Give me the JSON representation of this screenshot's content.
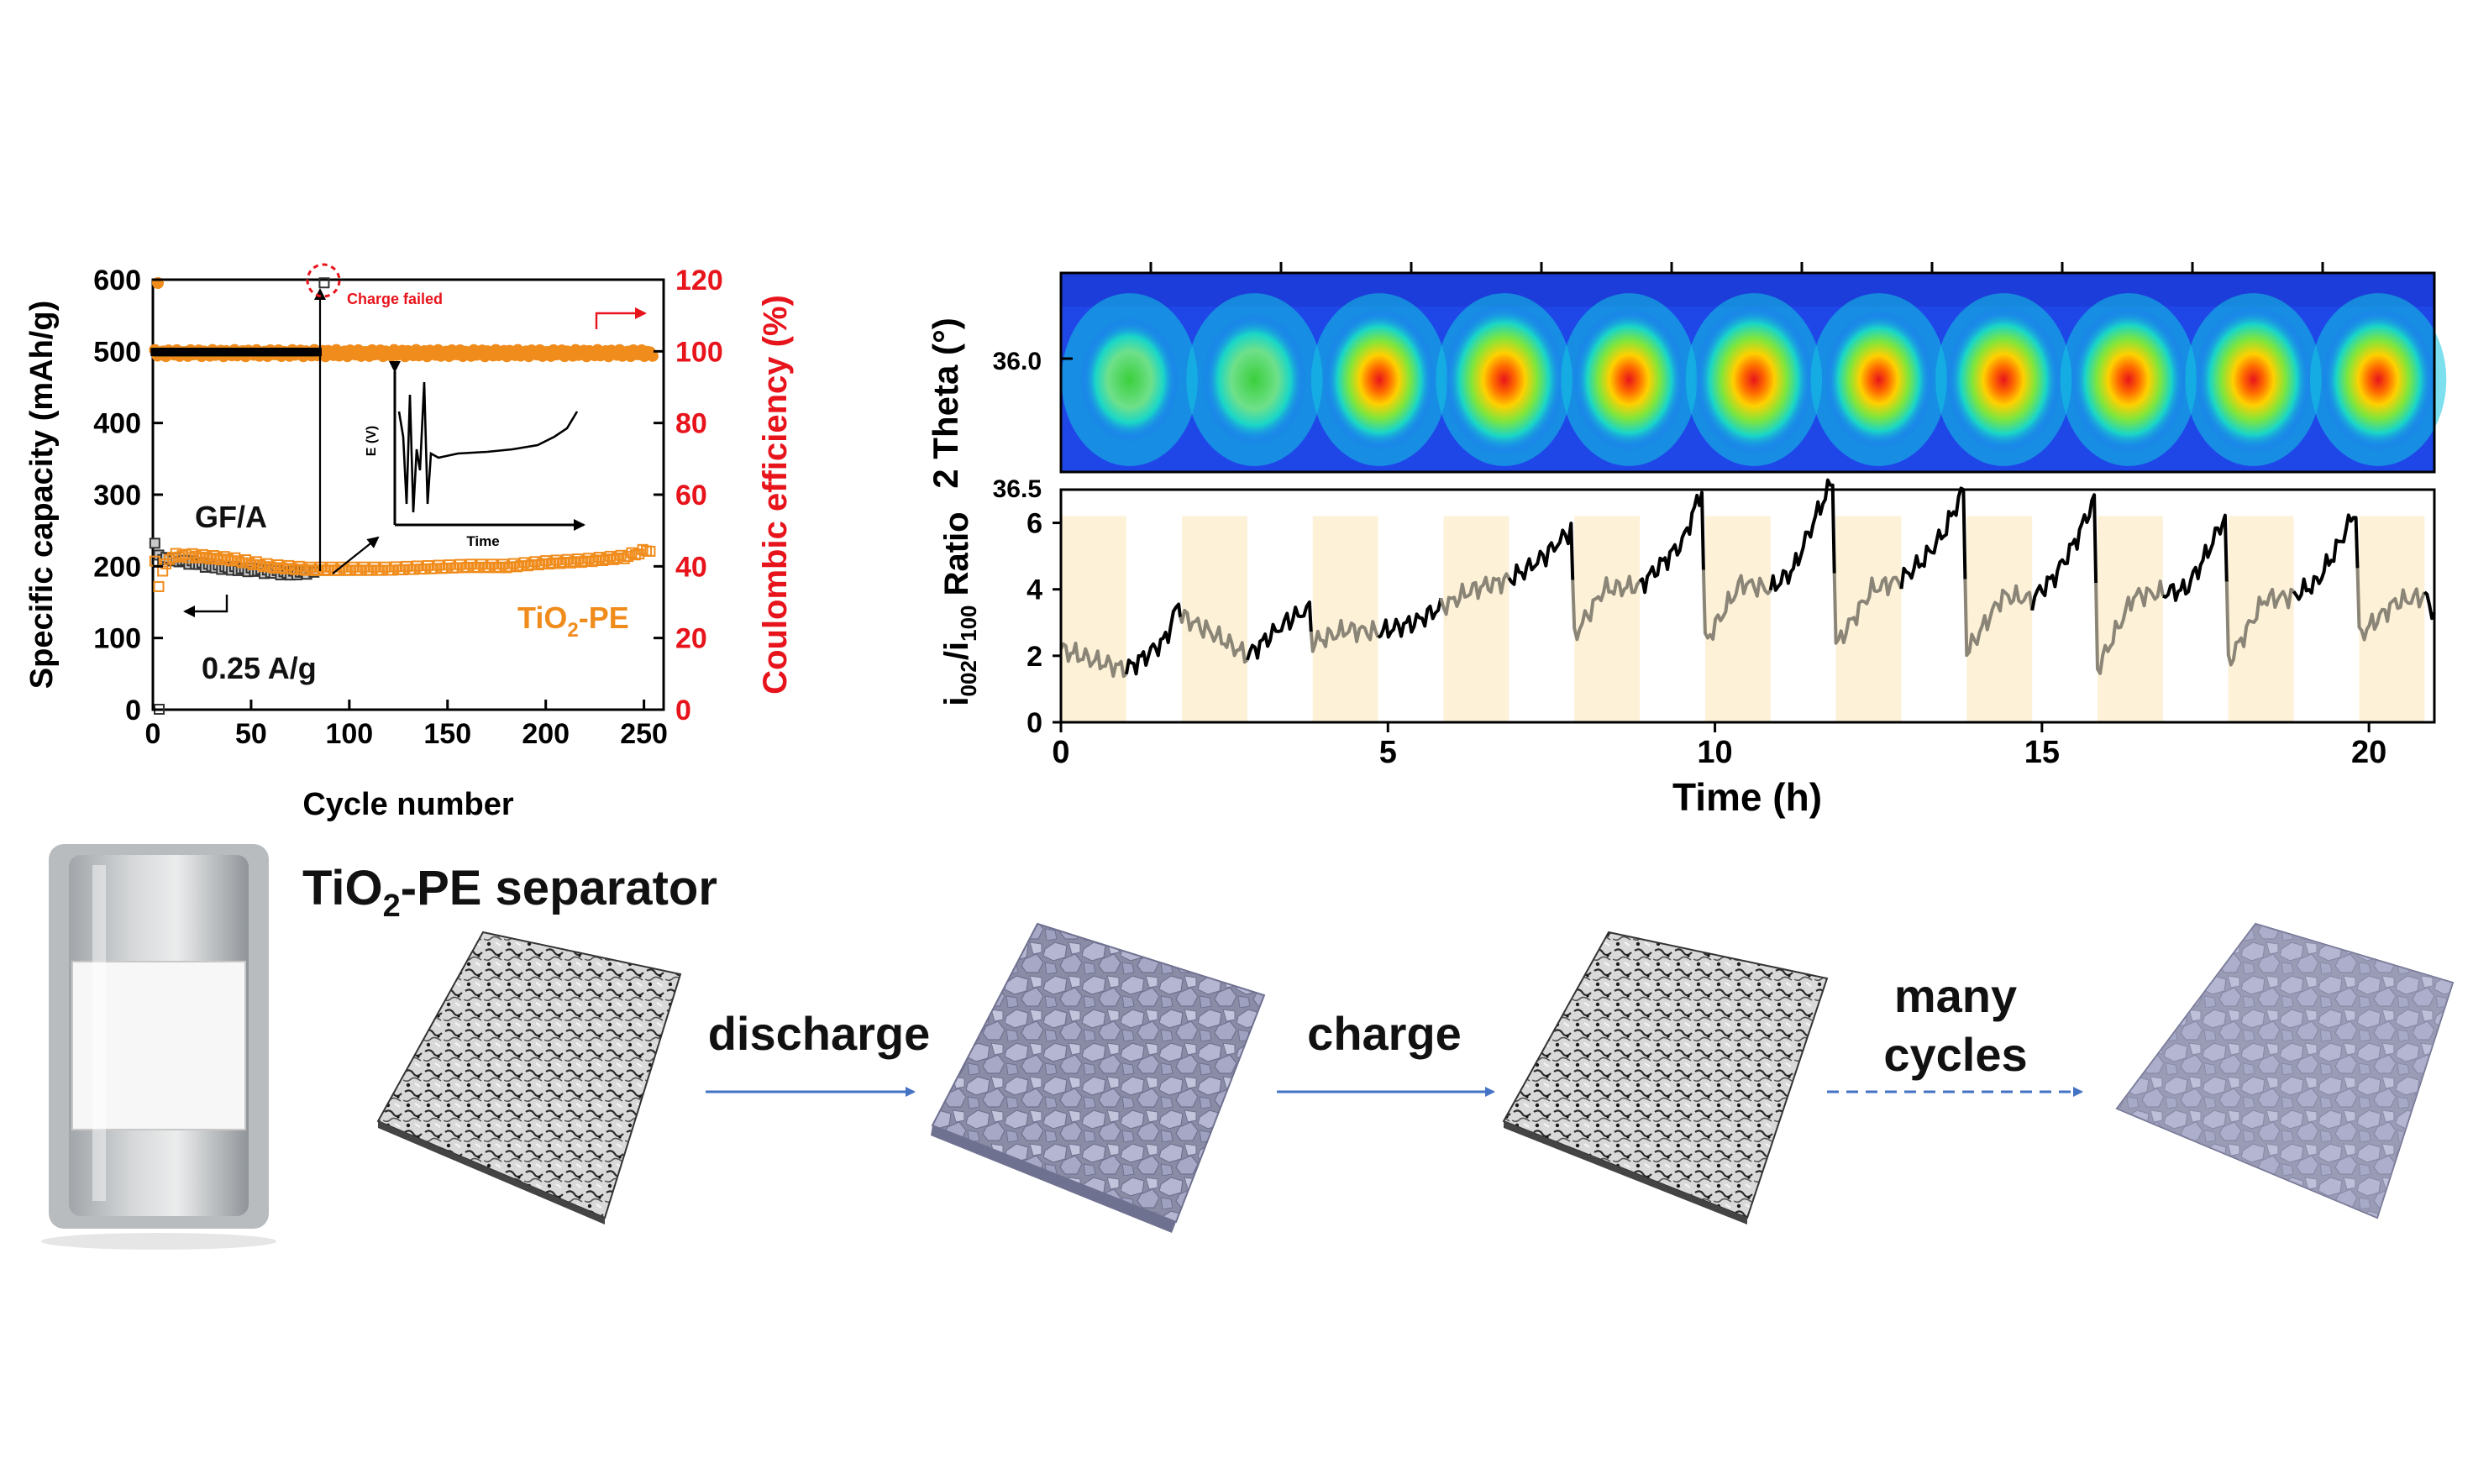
{
  "chart_data": [
    {
      "type": "scatter",
      "xlabel": "Cycle number",
      "ylabel": "Specific capacity (mAh/g)",
      "ylabel_right": "Coulombic efficiency (%)",
      "xlim": [
        0,
        260
      ],
      "ylim": [
        0,
        600
      ],
      "ylim_right": [
        0,
        120
      ],
      "xticks": [
        "0",
        "50",
        "100",
        "150",
        "200",
        "250"
      ],
      "yticks": [
        "0",
        "100",
        "200",
        "300",
        "400",
        "500",
        "600"
      ],
      "yticks_right": [
        "0",
        "20",
        "40",
        "60",
        "80",
        "100",
        "120"
      ],
      "labels": {
        "gf": "GF/A",
        "tio2_main": "TiO",
        "tio2_sub": "2",
        "tio2_tail": "-PE",
        "rate": "0.25 A/g",
        "charge_failed": "Charge failed"
      },
      "inset": {
        "ylabel": "E (V)",
        "xlabel": "Time"
      },
      "colors": {
        "gf": "#000000",
        "tio2": "#f08c1c",
        "right_axis": "#e8141c",
        "failed": "#e8141c"
      },
      "series": [
        {
          "key": "gf_ce",
          "marker": "filled-square",
          "x_start": 1,
          "x_end": 84,
          "value": 99.8
        },
        {
          "key": "tio2_ce",
          "marker": "filled-circle",
          "x_start": 1,
          "x_end": 255,
          "value": 99.5
        },
        {
          "key": "gf_cap",
          "marker": "open-square",
          "x": [
            1,
            3,
            5,
            10,
            20,
            30,
            40,
            50,
            60,
            70,
            80,
            84
          ],
          "y": [
            230,
            214,
            212,
            210,
            205,
            200,
            197,
            195,
            192,
            190,
            192,
            191
          ]
        },
        {
          "key": "tio2_cap",
          "marker": "open-square",
          "x": [
            1,
            3,
            5,
            10,
            20,
            40,
            60,
            80,
            100,
            120,
            140,
            160,
            180,
            200,
            220,
            240,
            255
          ],
          "y": [
            205,
            170,
            196,
            215,
            215,
            210,
            200,
            196,
            196,
            196,
            198,
            200,
            200,
            205,
            208,
            213,
            225
          ]
        }
      ],
      "outliers": [
        {
          "x": 0,
          "y_right": 120
        },
        {
          "x": 0,
          "y": 0
        },
        {
          "x": 84,
          "y": 595
        }
      ]
    },
    {
      "type": "heatmap",
      "ylabel": "2 Theta (°)",
      "yticks": [
        "36.0",
        "36.5"
      ],
      "blobs": [
        0.35,
        0.5,
        0.7,
        0.92,
        0.72,
        0.88,
        0.62,
        0.78,
        0.8,
        0.82,
        0.72
      ]
    },
    {
      "type": "line",
      "xlabel": "Time (h)",
      "ylabel_main": "i",
      "ylabel_sub1": "002",
      "ylabel_mid": "/i",
      "ylabel_sub2": "100",
      "ylabel_tail": " Ratio",
      "xlim": [
        0,
        21
      ],
      "ylim": [
        0,
        7
      ],
      "xticks": [
        "0",
        "5",
        "10",
        "15",
        "20"
      ],
      "yticks": [
        "0",
        "2",
        "4",
        "6"
      ],
      "shaded_intervals": [
        [
          0,
          1
        ],
        [
          1.85,
          2.85
        ],
        [
          3.85,
          4.85
        ],
        [
          5.85,
          6.85
        ],
        [
          7.85,
          8.85
        ],
        [
          9.85,
          10.85
        ],
        [
          11.85,
          12.85
        ],
        [
          13.85,
          14.85
        ],
        [
          15.85,
          16.85
        ],
        [
          17.85,
          18.85
        ],
        [
          19.85,
          20.85
        ]
      ],
      "series": [
        {
          "key": "ratio",
          "x": [
            0,
            0.3,
            0.6,
            1.0,
            1.3,
            1.6,
            1.8,
            1.85,
            2.3,
            2.85,
            3.2,
            3.5,
            3.8,
            3.85,
            4.4,
            4.85,
            5.4,
            5.85,
            6.3,
            6.85,
            7.2,
            7.5,
            7.8,
            7.85,
            8.3,
            8.85,
            9.2,
            9.5,
            9.8,
            9.85,
            10.4,
            10.85,
            11.2,
            11.5,
            11.8,
            11.85,
            12.4,
            12.85,
            13.2,
            13.5,
            13.8,
            13.85,
            14.4,
            14.85,
            15.2,
            15.5,
            15.8,
            15.85,
            16.4,
            16.85,
            17.2,
            17.5,
            17.8,
            17.85,
            18.4,
            18.85,
            19.2,
            19.5,
            19.8,
            19.85,
            20.4,
            20.85,
            21.0
          ],
          "y": [
            2.2,
            2.0,
            1.8,
            1.6,
            2.0,
            2.5,
            3.6,
            3.2,
            2.7,
            2.0,
            2.6,
            3.1,
            3.4,
            2.4,
            2.8,
            2.7,
            3.0,
            3.5,
            4.0,
            4.3,
            4.7,
            5.2,
            5.8,
            2.6,
            4.0,
            4.1,
            4.8,
            5.4,
            7.0,
            2.4,
            4.2,
            4.0,
            4.6,
            6.0,
            7.3,
            2.3,
            4.0,
            4.3,
            4.9,
            5.7,
            7.0,
            2.1,
            3.8,
            3.7,
            4.4,
            5.4,
            6.7,
            1.6,
            3.8,
            3.9,
            4.0,
            5.0,
            6.2,
            1.8,
            3.7,
            3.8,
            4.2,
            5.2,
            6.4,
            2.6,
            3.6,
            3.8,
            3.3
          ]
        }
      ]
    }
  ],
  "illustration": {
    "title_main": "TiO",
    "title_sub": "2",
    "title_tail": "-PE separator",
    "steps": [
      "discharge",
      "charge",
      "many",
      "cycles"
    ]
  }
}
